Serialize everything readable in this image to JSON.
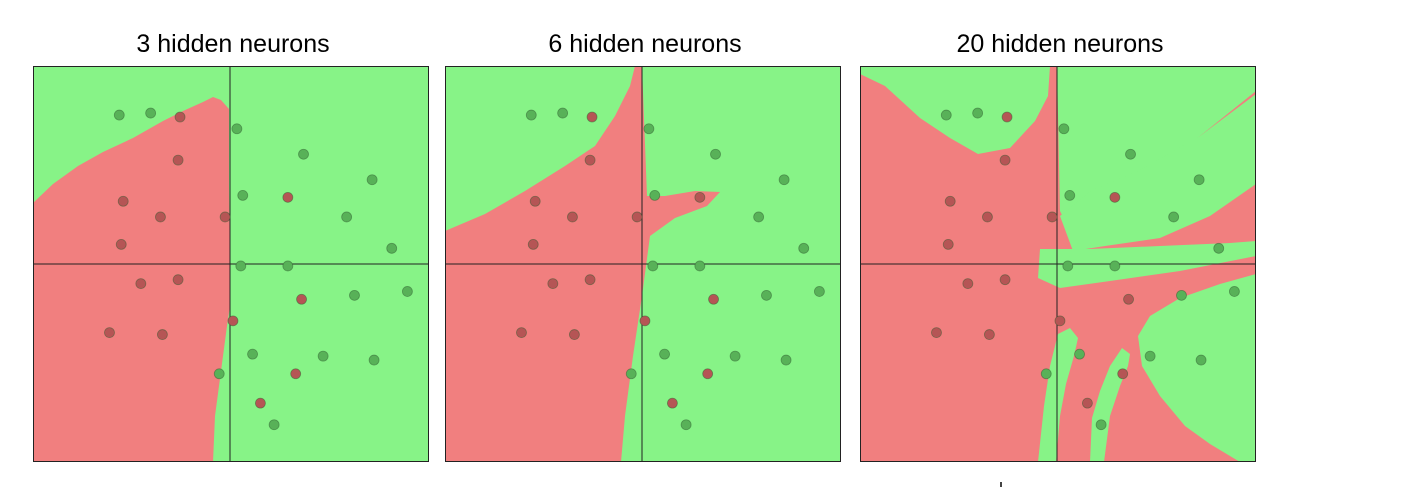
{
  "colors": {
    "green_region": "#87f387",
    "red_region": "#f17f7f",
    "green_point": "#58b158",
    "red_point": "#b55555",
    "axis": "#222222"
  },
  "panels": [
    {
      "title": "3 hidden neurons"
    },
    {
      "title": "6 hidden neurons"
    },
    {
      "title": "20 hidden neurons"
    }
  ],
  "points": {
    "green": [
      [
        -0.57,
        0.76
      ],
      [
        -0.41,
        0.77
      ],
      [
        0.03,
        0.69
      ],
      [
        0.37,
        0.56
      ],
      [
        0.72,
        0.43
      ],
      [
        0.06,
        0.35
      ],
      [
        0.59,
        0.24
      ],
      [
        0.82,
        0.08
      ],
      [
        0.05,
        -0.01
      ],
      [
        0.29,
        -0.01
      ],
      [
        0.63,
        -0.16
      ],
      [
        0.9,
        -0.14
      ],
      [
        0.11,
        -0.46
      ],
      [
        0.47,
        -0.47
      ],
      [
        0.73,
        -0.49
      ],
      [
        -0.06,
        -0.56
      ],
      [
        0.22,
        -0.82
      ]
    ],
    "red": [
      [
        -0.26,
        0.75
      ],
      [
        -0.27,
        0.53
      ],
      [
        -0.55,
        0.32
      ],
      [
        0.29,
        0.34
      ],
      [
        -0.36,
        0.24
      ],
      [
        -0.03,
        0.24
      ],
      [
        -0.56,
        0.1
      ],
      [
        -0.46,
        -0.1
      ],
      [
        -0.27,
        -0.08
      ],
      [
        0.36,
        -0.18
      ],
      [
        0.01,
        -0.29
      ],
      [
        -0.62,
        -0.35
      ],
      [
        -0.35,
        -0.36
      ],
      [
        0.33,
        -0.56
      ],
      [
        0.15,
        -0.71
      ]
    ]
  }
}
